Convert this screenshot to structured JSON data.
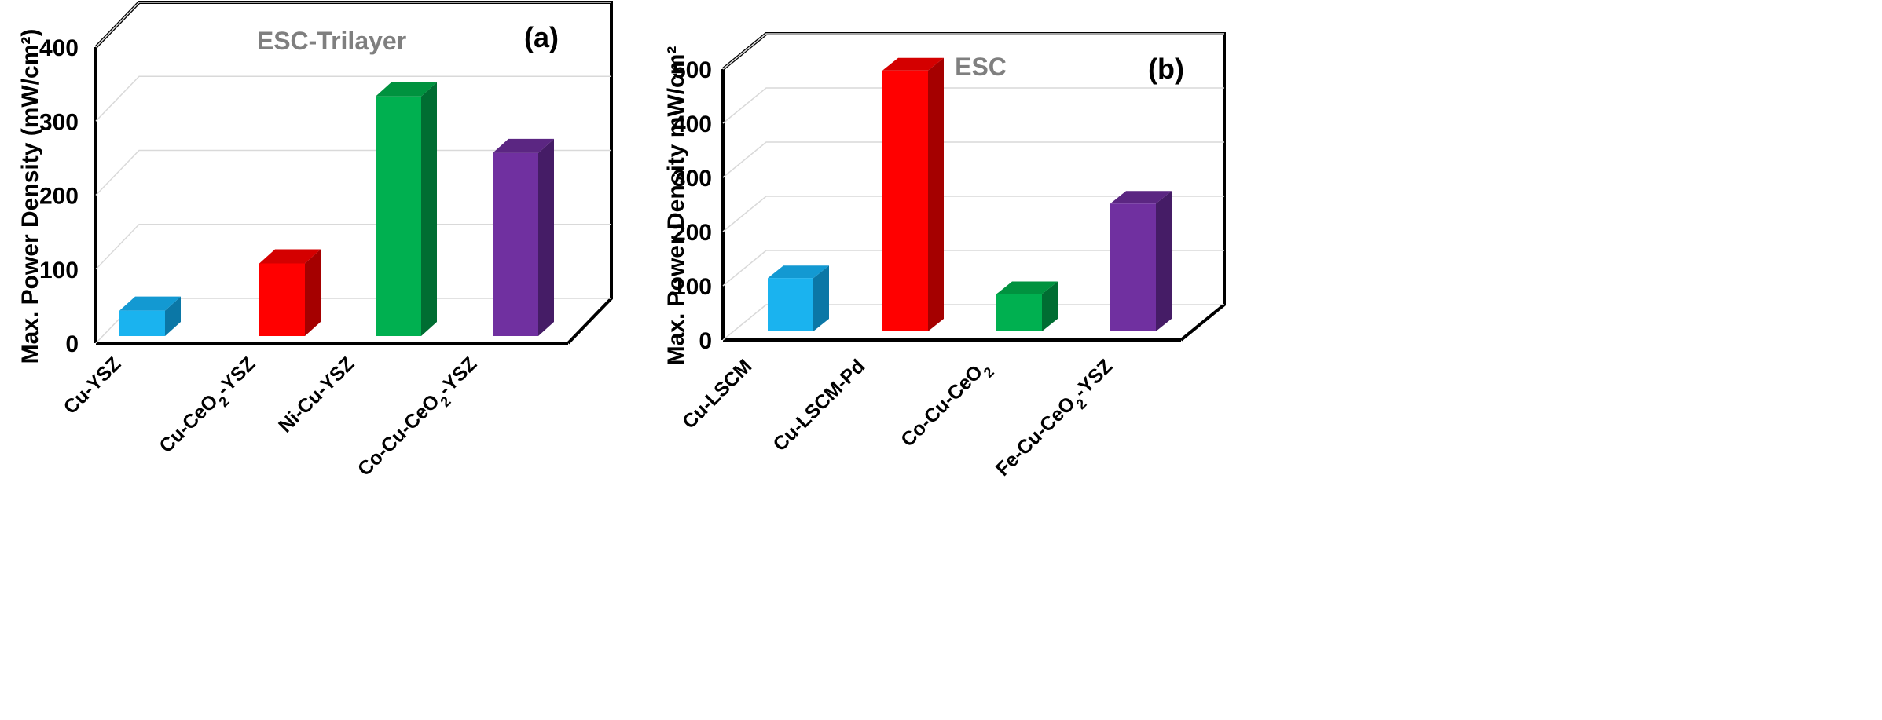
{
  "chart_data": [
    {
      "type": "bar",
      "title": "ESC-Trilayer",
      "panel_label": "(a)",
      "ylabel": "Max. Power Density (mW/cm²)",
      "xlabel": "",
      "ylim": [
        0,
        400
      ],
      "yticks": [
        "0",
        "100",
        "200",
        "300",
        "400"
      ],
      "categories": [
        {
          "name": "Cu-YSZ",
          "parts": [
            [
              "Cu-YSZ",
              false
            ]
          ]
        },
        {
          "name": "Cu-CeO2-YSZ",
          "parts": [
            [
              "Cu-CeO",
              false
            ],
            [
              "2",
              true
            ],
            [
              "-YSZ",
              false
            ]
          ]
        },
        {
          "name": "Ni-Cu-YSZ",
          "parts": [
            [
              "Ni-Cu-YSZ",
              false
            ]
          ]
        },
        {
          "name": "Co-Cu-CeO2-YSZ",
          "parts": [
            [
              "Co-Cu-CeO",
              false
            ],
            [
              "2",
              true
            ],
            [
              "-YSZ",
              false
            ]
          ]
        }
      ],
      "values": [
        35,
        100,
        330,
        252
      ],
      "colors": [
        {
          "front": "#1ab3ef",
          "side": "#0b77a6",
          "top": "#1399d2"
        },
        {
          "front": "#ff0000",
          "side": "#a50000",
          "top": "#d40000"
        },
        {
          "front": "#00b050",
          "side": "#006d32",
          "top": "#00923f"
        },
        {
          "front": "#7030a0",
          "side": "#451c66",
          "top": "#5b2682"
        }
      ],
      "grid": true
    },
    {
      "type": "bar",
      "title": "ESC",
      "panel_label": "(b)",
      "ylabel": "Max. Power Density mW/cm²",
      "xlabel": "",
      "ylim": [
        0,
        500
      ],
      "yticks": [
        "0",
        "100",
        "200",
        "300",
        "400",
        "500"
      ],
      "categories": [
        {
          "name": "Cu-LSCM",
          "parts": [
            [
              "Cu-LSCM",
              false
            ]
          ]
        },
        {
          "name": "Cu-LSCM-Pd",
          "parts": [
            [
              "Cu-LSCM-Pd",
              false
            ]
          ]
        },
        {
          "name": "Co-Cu-CeO2",
          "parts": [
            [
              "Co-Cu-CeO",
              false
            ],
            [
              "2",
              true
            ]
          ]
        },
        {
          "name": "Fe-Cu-CeO2-YSZ",
          "parts": [
            [
              "Fe-Cu-CeO",
              false
            ],
            [
              "2",
              true
            ],
            [
              "-YSZ",
              false
            ]
          ]
        }
      ],
      "values": [
        100,
        490,
        70,
        240
      ],
      "colors": [
        {
          "front": "#1ab3ef",
          "side": "#0b77a6",
          "top": "#1399d2"
        },
        {
          "front": "#ff0000",
          "side": "#a50000",
          "top": "#d40000"
        },
        {
          "front": "#00b050",
          "side": "#006d32",
          "top": "#00923f"
        },
        {
          "front": "#7030a0",
          "side": "#451c66",
          "top": "#5b2682"
        }
      ],
      "grid": true
    }
  ]
}
